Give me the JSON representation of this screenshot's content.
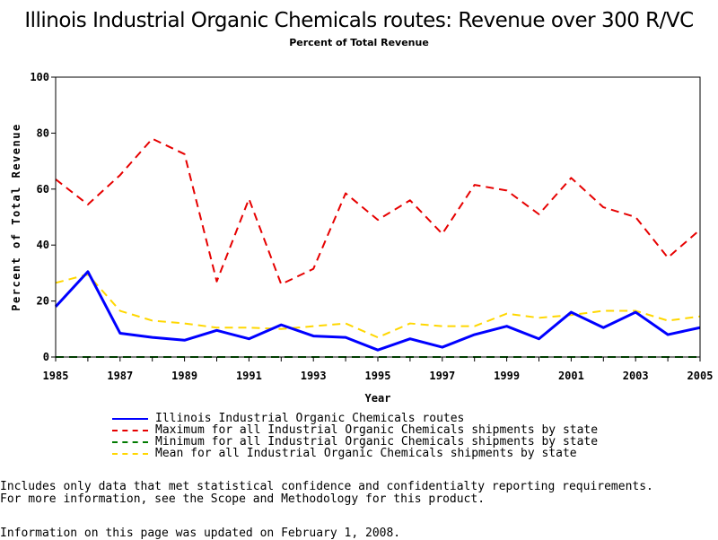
{
  "chart_data": {
    "type": "line",
    "title": "Illinois Industrial Organic Chemicals routes: Revenue over 300 R/VC",
    "subtitle": "Percent of Total Revenue",
    "xlabel": "Year",
    "ylabel": "Percent of Total Revenue",
    "xlim": [
      1985,
      2005
    ],
    "ylim": [
      0,
      100
    ],
    "xticks": [
      "1985",
      "1987",
      "1989",
      "1991",
      "1993",
      "1995",
      "1997",
      "1999",
      "2001",
      "2003",
      "2005"
    ],
    "yticks": [
      "0",
      "20",
      "40",
      "60",
      "80",
      "100"
    ],
    "x": [
      1985,
      1986,
      1987,
      1988,
      1989,
      1990,
      1991,
      1992,
      1993,
      1994,
      1995,
      1996,
      1997,
      1998,
      1999,
      2000,
      2001,
      2002,
      2003,
      2004,
      2005
    ],
    "series": [
      {
        "name": "Illinois Industrial Organic Chemicals routes",
        "color": "#0000ff",
        "dash": "solid",
        "values": [
          18,
          30.5,
          8.5,
          7,
          6,
          9.5,
          6.5,
          11.5,
          7.5,
          7,
          2.5,
          6.5,
          3.5,
          8,
          11,
          6.5,
          16,
          10.5,
          16,
          8,
          10.5
        ]
      },
      {
        "name": "Maximum for all Industrial Organic Chemicals shipments by state",
        "color": "#e60000",
        "dash": "dashed",
        "values": [
          63.5,
          54.5,
          65,
          78,
          72.5,
          27,
          56.5,
          26,
          31.5,
          58.5,
          49,
          56,
          44,
          61.5,
          59.5,
          51,
          64,
          53.5,
          50,
          35.5,
          45.5
        ]
      },
      {
        "name": "Minimum for all Industrial Organic Chemicals shipments by state",
        "color": "#007a00",
        "dash": "dashed",
        "values": [
          0,
          0,
          0,
          0,
          0,
          0,
          0,
          0,
          0,
          0,
          0,
          0,
          0,
          0,
          0,
          0,
          0,
          0,
          0,
          0,
          0
        ]
      },
      {
        "name": "Mean for all Industrial Organic Chemicals shipments by state",
        "color": "#ffd700",
        "dash": "dashed",
        "values": [
          26.5,
          29.5,
          16.5,
          13,
          12,
          10.5,
          10.5,
          10,
          11,
          12,
          7,
          12,
          11,
          11,
          15.5,
          14,
          15,
          16.5,
          16.5,
          13,
          14.5
        ]
      }
    ],
    "legend_placement": "bottom"
  },
  "notes": {
    "line1": "Includes only data that met statistical confidence and confidentialty reporting requirements.",
    "line2": "For more information, see the Scope and Methodology for this product."
  },
  "updated": "Information on this page was updated on February 1, 2008."
}
